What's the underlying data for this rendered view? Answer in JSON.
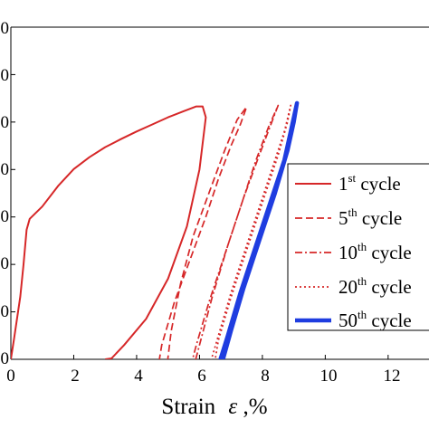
{
  "chart_data": {
    "type": "line",
    "xlabel_text": "Strain",
    "xlabel_symbol": "ε",
    "xlabel_unit": ",%",
    "xlim": [
      0,
      13.3
    ],
    "xticks": [
      0,
      2,
      4,
      6,
      8,
      10,
      12
    ],
    "ylim": [
      0,
      70
    ],
    "yticks_visible_labels": [
      "0",
      "0",
      "0",
      "0",
      "0",
      "0",
      "0",
      "0"
    ],
    "grid": false,
    "legend_position": "right",
    "series": [
      {
        "name": "1st cycle",
        "label_base": "1",
        "label_sup": "st",
        "label_rest": " cycle",
        "color": "#d62728",
        "dash": "solid",
        "width": 2,
        "points": [
          [
            0.0,
            0.0
          ],
          [
            0.1,
            4.3
          ],
          [
            0.3,
            13.2
          ],
          [
            0.4,
            19.8
          ],
          [
            0.5,
            27.3
          ],
          [
            0.6,
            29.6
          ],
          [
            1.0,
            32.2
          ],
          [
            1.5,
            36.5
          ],
          [
            2.0,
            40.1
          ],
          [
            2.5,
            42.6
          ],
          [
            3.0,
            44.7
          ],
          [
            3.5,
            46.4
          ],
          [
            4.0,
            48.0
          ],
          [
            4.5,
            49.5
          ],
          [
            5.0,
            51.0
          ],
          [
            5.5,
            52.3
          ],
          [
            5.9,
            53.3
          ],
          [
            6.1,
            53.3
          ],
          [
            6.2,
            51.0
          ],
          [
            6.0,
            40.0
          ],
          [
            5.6,
            28.0
          ],
          [
            5.0,
            17.0
          ],
          [
            4.3,
            8.5
          ],
          [
            3.6,
            3.0
          ],
          [
            3.2,
            0.2
          ],
          [
            3.0,
            0.0
          ],
          [
            3.0,
            0.0
          ]
        ]
      },
      {
        "name": "5th cycle",
        "label_base": "5",
        "label_sup": "th",
        "label_rest": " cycle",
        "color": "#d62728",
        "dash": "8,4",
        "width": 1.7,
        "points": [
          [
            4.6,
            -5.0
          ],
          [
            4.8,
            3.0
          ],
          [
            5.2,
            12.0
          ],
          [
            5.7,
            21.0
          ],
          [
            6.2,
            30.0
          ],
          [
            6.6,
            38.0
          ],
          [
            7.0,
            45.0
          ],
          [
            7.3,
            49.5
          ],
          [
            7.5,
            53.2
          ],
          [
            7.2,
            50.5
          ],
          [
            6.8,
            44.0
          ],
          [
            6.3,
            35.0
          ],
          [
            5.8,
            26.0
          ],
          [
            5.4,
            16.0
          ],
          [
            5.1,
            6.0
          ],
          [
            4.9,
            -5.0
          ]
        ]
      },
      {
        "name": "10th cycle",
        "label_base": "10",
        "label_sup": "th",
        "label_rest": " cycle",
        "color": "#d62728",
        "dash": "8,3,2,3",
        "width": 1.7,
        "points": [
          [
            5.6,
            -4.5
          ],
          [
            5.9,
            3.0
          ],
          [
            6.3,
            12.0
          ],
          [
            6.8,
            22.0
          ],
          [
            7.3,
            32.0
          ],
          [
            7.8,
            42.0
          ],
          [
            8.2,
            49.0
          ],
          [
            8.5,
            53.5
          ],
          [
            8.3,
            50.0
          ],
          [
            7.9,
            43.0
          ],
          [
            7.4,
            34.0
          ],
          [
            6.9,
            24.0
          ],
          [
            6.4,
            13.0
          ],
          [
            6.0,
            3.0
          ],
          [
            5.7,
            -4.5
          ]
        ]
      },
      {
        "name": "20th cycle",
        "label_base": "20",
        "label_sup": "th",
        "label_rest": " cycle",
        "color": "#d62728",
        "dash": "2,3",
        "width": 1.7,
        "points": [
          [
            6.2,
            -4.0
          ],
          [
            6.6,
            5.0
          ],
          [
            7.0,
            14.0
          ],
          [
            7.5,
            24.0
          ],
          [
            8.0,
            34.0
          ],
          [
            8.4,
            42.0
          ],
          [
            8.7,
            48.0
          ],
          [
            8.9,
            53.5
          ],
          [
            8.8,
            50.0
          ],
          [
            8.5,
            43.0
          ],
          [
            8.0,
            33.0
          ],
          [
            7.5,
            23.0
          ],
          [
            7.0,
            13.0
          ],
          [
            6.6,
            4.0
          ],
          [
            6.4,
            -4.0
          ]
        ]
      },
      {
        "name": "50th cycle",
        "label_base": "50",
        "label_sup": "th",
        "label_rest": " cycle",
        "color": "#1f3de0",
        "dash": "solid",
        "width": 4.5,
        "points": [
          [
            6.5,
            -3.5
          ],
          [
            6.9,
            5.0
          ],
          [
            7.3,
            14.0
          ],
          [
            7.8,
            24.0
          ],
          [
            8.3,
            34.0
          ],
          [
            8.7,
            42.0
          ],
          [
            8.9,
            48.0
          ],
          [
            9.1,
            54.0
          ],
          [
            9.0,
            50.0
          ],
          [
            8.8,
            44.0
          ],
          [
            8.4,
            35.0
          ],
          [
            7.9,
            25.0
          ],
          [
            7.4,
            15.0
          ],
          [
            7.0,
            6.0
          ],
          [
            6.6,
            -3.5
          ]
        ]
      }
    ]
  }
}
